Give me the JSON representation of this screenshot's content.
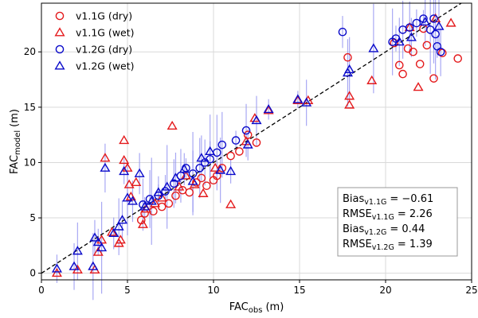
{
  "chart_data": {
    "type": "scatter",
    "xlabel": {
      "main": "FAC",
      "sub": "obs",
      "unit": "(m)"
    },
    "ylabel": {
      "main": "FAC",
      "sub": "model",
      "unit": "(m)"
    },
    "xlim": [
      0,
      25
    ],
    "ylim": [
      -0.6,
      24.4
    ],
    "xticks": [
      0,
      5,
      10,
      15,
      20,
      25
    ],
    "yticks": [
      0,
      5,
      10,
      15,
      20
    ],
    "grid": true,
    "legend_position": "top-left",
    "reference_line": {
      "style": "dashed",
      "from": [
        0,
        0
      ],
      "to": [
        24.4,
        24.4
      ]
    },
    "series": [
      {
        "name": "v1.1G (dry)",
        "marker": "circle",
        "color": "#e41a1c",
        "points": [
          [
            5.8,
            4.8
          ],
          [
            6.0,
            5.4
          ],
          [
            6.5,
            5.6
          ],
          [
            7.0,
            6.0
          ],
          [
            7.4,
            6.3
          ],
          [
            7.8,
            7.0
          ],
          [
            8.2,
            7.5
          ],
          [
            8.6,
            7.3
          ],
          [
            9.0,
            8.2
          ],
          [
            9.3,
            8.6
          ],
          [
            9.6,
            7.9
          ],
          [
            10.0,
            8.4
          ],
          [
            10.2,
            8.8
          ],
          [
            10.5,
            9.5
          ],
          [
            11.0,
            10.6
          ],
          [
            11.5,
            11.0
          ],
          [
            12.0,
            12.5
          ],
          [
            12.5,
            11.8
          ],
          [
            17.8,
            19.5
          ],
          [
            20.5,
            20.8
          ],
          [
            20.8,
            18.8
          ],
          [
            21.0,
            18.0
          ],
          [
            21.3,
            20.3
          ],
          [
            21.6,
            20.0
          ],
          [
            22.0,
            18.9
          ],
          [
            22.4,
            20.6
          ],
          [
            22.8,
            17.6
          ],
          [
            23.3,
            19.9
          ],
          [
            24.2,
            19.4
          ],
          [
            22.2,
            22.1
          ]
        ]
      },
      {
        "name": "v1.1G (wet)",
        "marker": "triangle",
        "color": "#e41a1c",
        "points": [
          [
            0.9,
            0.0
          ],
          [
            2.1,
            0.3
          ],
          [
            3.1,
            0.3
          ],
          [
            3.3,
            1.9
          ],
          [
            3.5,
            3.0
          ],
          [
            3.7,
            10.4
          ],
          [
            4.1,
            3.7
          ],
          [
            4.5,
            2.7
          ],
          [
            4.6,
            3.0
          ],
          [
            4.8,
            12.0
          ],
          [
            4.8,
            10.2
          ],
          [
            5.0,
            9.5
          ],
          [
            5.1,
            8.0
          ],
          [
            5.2,
            6.9
          ],
          [
            5.5,
            8.2
          ],
          [
            5.9,
            4.4
          ],
          [
            6.1,
            5.8
          ],
          [
            6.6,
            6.3
          ],
          [
            7.0,
            6.8
          ],
          [
            7.6,
            13.3
          ],
          [
            8.0,
            7.8
          ],
          [
            8.4,
            8.8
          ],
          [
            8.9,
            8.0
          ],
          [
            9.4,
            7.2
          ],
          [
            10.1,
            9.5
          ],
          [
            11.0,
            6.2
          ],
          [
            11.9,
            11.9
          ],
          [
            12.4,
            14.0
          ],
          [
            13.2,
            14.7
          ],
          [
            14.9,
            15.6
          ],
          [
            15.5,
            15.6
          ],
          [
            17.9,
            15.2
          ],
          [
            17.9,
            16.0
          ],
          [
            19.2,
            17.4
          ],
          [
            21.9,
            16.8
          ],
          [
            22.9,
            23.0
          ],
          [
            23.8,
            22.6
          ],
          [
            21.4,
            22.2
          ]
        ]
      },
      {
        "name": "v1.2G (dry)",
        "marker": "circle",
        "color": "#0a0aca",
        "points": [
          [
            5.9,
            6.2
          ],
          [
            6.3,
            6.7
          ],
          [
            6.8,
            7.0
          ],
          [
            7.2,
            7.4
          ],
          [
            7.7,
            8.1
          ],
          [
            8.1,
            8.8
          ],
          [
            8.4,
            9.5
          ],
          [
            8.8,
            9.0
          ],
          [
            9.2,
            9.5
          ],
          [
            9.5,
            10.0
          ],
          [
            9.8,
            10.3
          ],
          [
            10.2,
            10.9
          ],
          [
            10.5,
            11.6
          ],
          [
            11.3,
            12.0
          ],
          [
            11.9,
            12.9
          ],
          [
            17.5,
            21.8
          ],
          [
            20.4,
            20.9
          ],
          [
            20.6,
            21.2
          ],
          [
            21.0,
            22.0
          ],
          [
            21.4,
            22.2
          ],
          [
            21.8,
            22.6
          ],
          [
            22.2,
            23.0
          ],
          [
            22.6,
            22.0
          ],
          [
            22.9,
            21.6
          ],
          [
            23.0,
            20.5
          ],
          [
            23.2,
            20.0
          ],
          [
            22.8,
            23.0
          ]
        ]
      },
      {
        "name": "v1.2G (wet)",
        "marker": "triangle",
        "color": "#0a0aca",
        "points": [
          [
            0.9,
            0.4
          ],
          [
            1.9,
            0.6
          ],
          [
            2.1,
            2.0
          ],
          [
            3.0,
            0.6
          ],
          [
            3.1,
            3.2
          ],
          [
            3.3,
            2.8
          ],
          [
            3.5,
            2.3
          ],
          [
            3.7,
            9.5
          ],
          [
            4.2,
            3.6
          ],
          [
            4.5,
            4.2
          ],
          [
            4.7,
            4.8
          ],
          [
            4.8,
            9.2
          ],
          [
            5.0,
            6.8
          ],
          [
            5.3,
            6.5
          ],
          [
            5.7,
            9.0
          ],
          [
            6.0,
            6.0
          ],
          [
            6.4,
            6.5
          ],
          [
            6.8,
            7.3
          ],
          [
            7.3,
            7.8
          ],
          [
            7.8,
            8.6
          ],
          [
            8.3,
            9.4
          ],
          [
            8.8,
            8.3
          ],
          [
            9.3,
            10.4
          ],
          [
            9.8,
            11.0
          ],
          [
            10.4,
            9.3
          ],
          [
            11.0,
            9.2
          ],
          [
            12.0,
            11.6
          ],
          [
            12.5,
            13.8
          ],
          [
            13.2,
            14.8
          ],
          [
            14.9,
            15.7
          ],
          [
            15.4,
            15.4
          ],
          [
            17.8,
            18.1
          ],
          [
            17.9,
            18.4
          ],
          [
            19.3,
            20.3
          ],
          [
            21.5,
            21.3
          ],
          [
            22.3,
            22.7
          ],
          [
            23.1,
            22.3
          ],
          [
            20.8,
            20.9
          ]
        ]
      }
    ]
  },
  "stats": [
    {
      "label": "Bias",
      "sub": "v1.1G",
      "value": "= −0.61"
    },
    {
      "label": "RMSE",
      "sub": "v1.1G",
      "value": "= 2.26"
    },
    {
      "label": "Bias",
      "sub": "v1.2G",
      "value": "= 0.44"
    },
    {
      "label": "RMSE",
      "sub": "v1.2G",
      "value": "= 1.39"
    }
  ]
}
